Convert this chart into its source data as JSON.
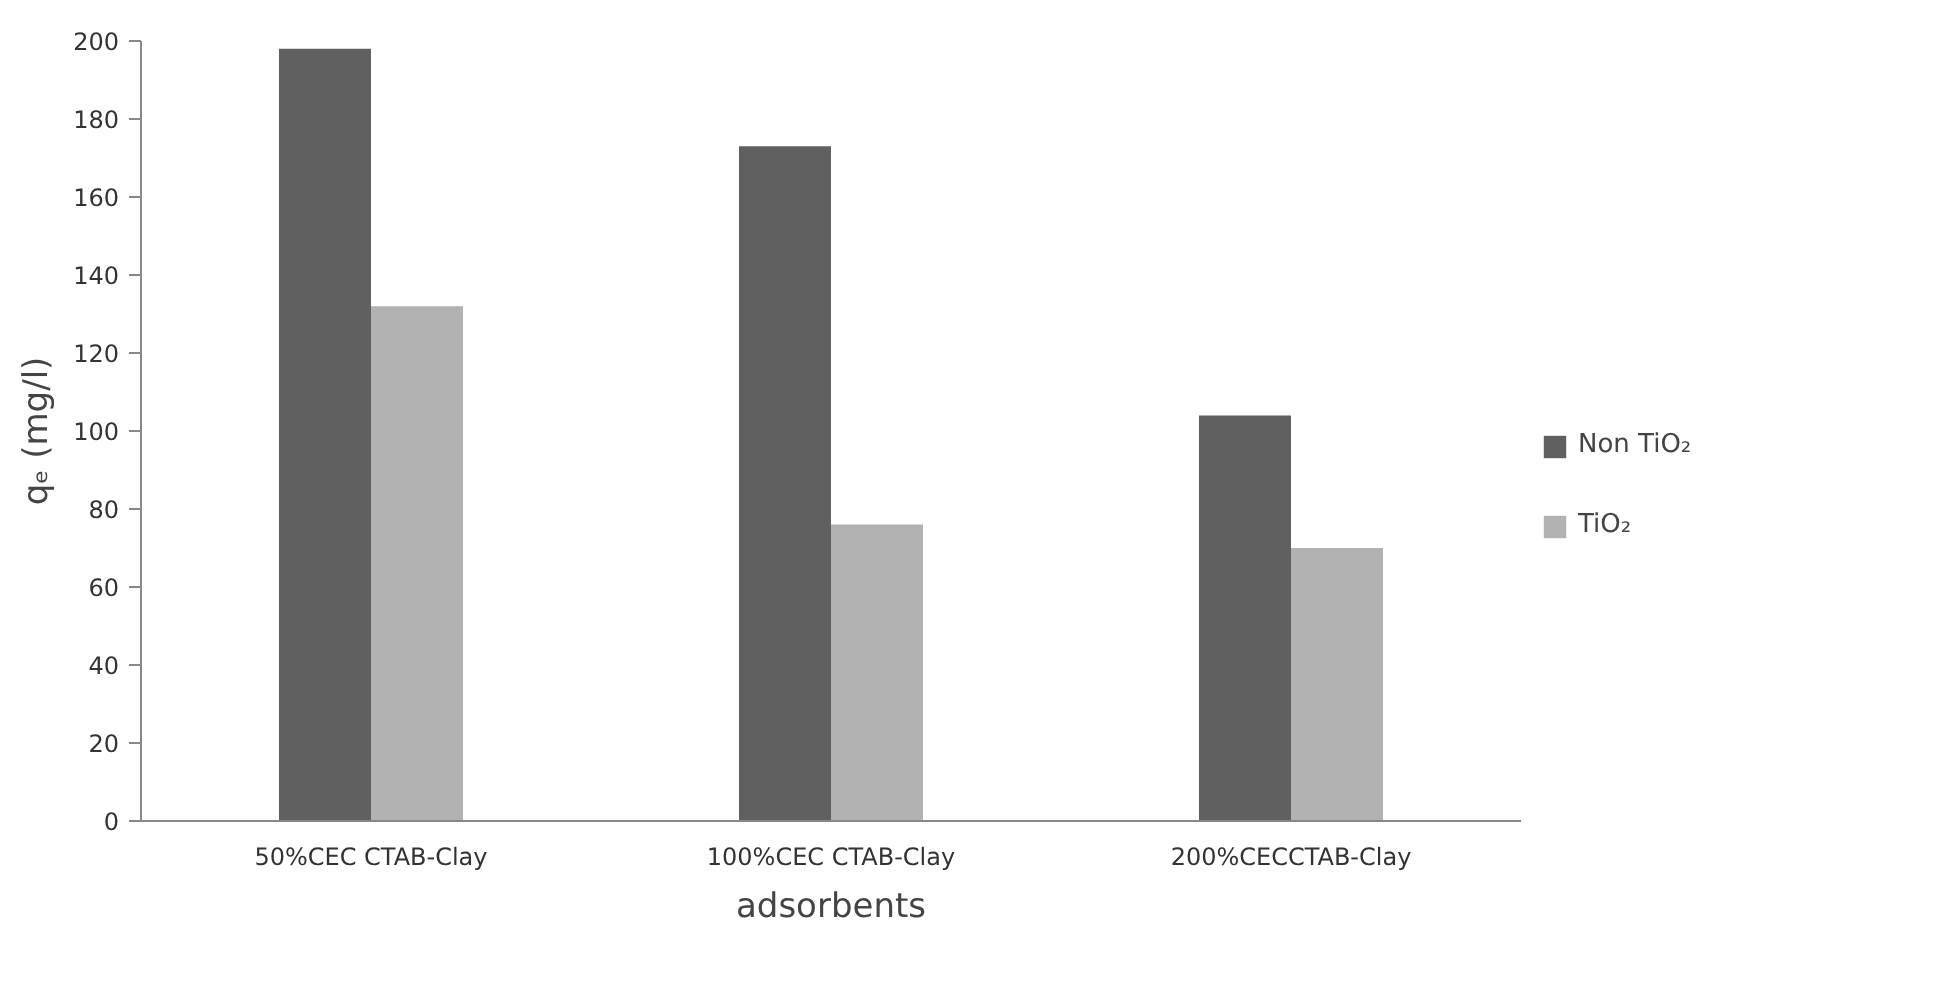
{
  "chart_data": {
    "type": "bar",
    "xlabel": "adsorbents",
    "ylabel": "qₑ (mg/l)",
    "categories": [
      "50%CEC CTAB-Clay",
      "100%CEC CTAB-Clay",
      "200%CECCTAB-Clay"
    ],
    "series": [
      {
        "name": "Non TiO₂",
        "color": "#606060",
        "values": [
          198,
          173,
          104
        ]
      },
      {
        "name": "TiO₂",
        "color": "#b2b2b2",
        "values": [
          132,
          76,
          70
        ]
      }
    ],
    "ylim": [
      0,
      200
    ],
    "yticks": [
      0,
      20,
      40,
      60,
      80,
      100,
      120,
      140,
      160,
      180,
      200
    ],
    "grid": false,
    "legend": "right"
  }
}
